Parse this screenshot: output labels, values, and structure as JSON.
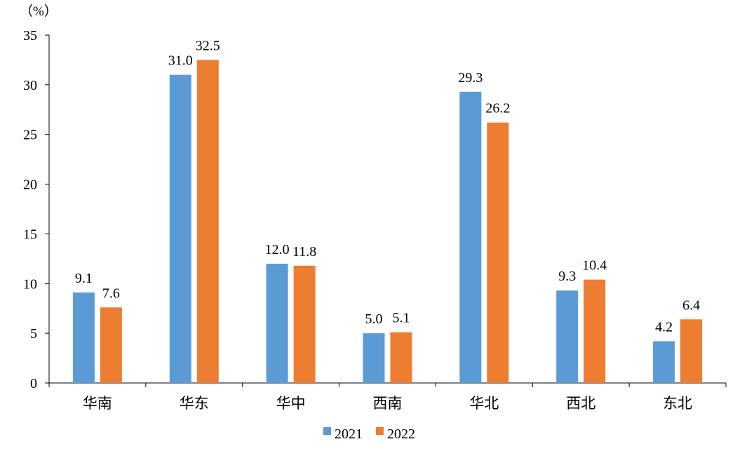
{
  "chart_data": {
    "type": "bar",
    "title": "",
    "unit_label": "（%）",
    "xlabel": "",
    "ylabel": "",
    "ylim": [
      0,
      35
    ],
    "yticks": [
      0,
      5,
      10,
      15,
      20,
      25,
      30,
      35
    ],
    "grid": false,
    "legend_position": "bottom",
    "categories": [
      "华南",
      "华东",
      "华中",
      "西南",
      "华北",
      "西北",
      "东北"
    ],
    "series": [
      {
        "name": "2021",
        "color": "#5B9BD5",
        "values": [
          9.1,
          31.0,
          12.0,
          5.0,
          29.3,
          9.3,
          4.2
        ],
        "labels": [
          "9.1",
          "31.0",
          "12.0",
          "5.0",
          "29.3",
          "9.3",
          "4.2"
        ]
      },
      {
        "name": "2022",
        "color": "#ED7D31",
        "values": [
          7.6,
          32.5,
          11.8,
          5.1,
          26.2,
          10.4,
          6.4
        ],
        "labels": [
          "7.6",
          "32.5",
          "11.8",
          "5.1",
          "26.2",
          "10.4",
          "6.4"
        ]
      }
    ]
  }
}
